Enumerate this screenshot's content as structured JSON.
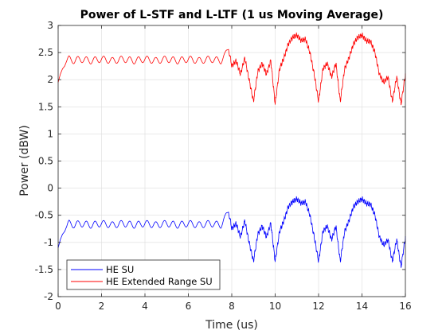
{
  "chart_data": {
    "type": "line",
    "title": "Power of L-STF and L-LTF (1 us Moving Average)",
    "xlabel": "Time (us)",
    "ylabel": "Power (dBW)",
    "xlim": [
      0,
      16
    ],
    "ylim": [
      -2,
      3
    ],
    "xticks": [
      0,
      2,
      4,
      6,
      8,
      10,
      12,
      14,
      16
    ],
    "yticks": [
      3,
      2.5,
      2,
      1.5,
      1,
      0.5,
      0,
      -0.5,
      -1,
      -1.5,
      -2
    ],
    "xtick_labels": [
      "0",
      "2",
      "4",
      "6",
      "8",
      "10",
      "12",
      "14",
      "16"
    ],
    "ytick_labels": [
      "3",
      "2.5",
      "2",
      "1.5",
      "1",
      "0.5",
      "0",
      "-0.5",
      "-1",
      "-1.5",
      "-2"
    ],
    "grid": true,
    "legend_position": "bottom-left",
    "series": [
      {
        "name": "HE SU",
        "color": "#0000ff",
        "x": [
          0.0,
          0.1,
          0.2,
          0.3,
          0.4,
          0.5,
          0.75,
          1.0,
          1.5,
          2.0,
          2.5,
          3.0,
          3.5,
          4.0,
          4.5,
          5.0,
          5.5,
          6.0,
          6.5,
          7.0,
          7.5,
          7.7,
          7.85,
          8.0,
          8.2,
          8.4,
          8.6,
          8.8,
          9.0,
          9.2,
          9.4,
          9.6,
          9.8,
          10.0,
          10.2,
          10.4,
          10.6,
          10.8,
          11.0,
          11.2,
          11.4,
          11.6,
          11.8,
          12.0,
          12.2,
          12.4,
          12.6,
          12.8,
          13.0,
          13.2,
          13.4,
          13.6,
          13.8,
          14.0,
          14.2,
          14.4,
          14.6,
          14.8,
          15.0,
          15.2,
          15.4,
          15.6,
          15.8,
          16.0
        ],
        "y": [
          -1.1,
          -0.95,
          -0.85,
          -0.8,
          -0.7,
          -0.65,
          -0.68,
          -0.65,
          -0.68,
          -0.65,
          -0.68,
          -0.65,
          -0.68,
          -0.65,
          -0.68,
          -0.65,
          -0.68,
          -0.65,
          -0.68,
          -0.65,
          -0.68,
          -0.55,
          -0.4,
          -0.75,
          -0.65,
          -0.9,
          -0.6,
          -1.0,
          -1.35,
          -0.85,
          -0.7,
          -0.9,
          -0.65,
          -1.35,
          -0.8,
          -0.6,
          -0.35,
          -0.25,
          -0.2,
          -0.28,
          -0.25,
          -0.5,
          -0.9,
          -1.35,
          -0.8,
          -0.7,
          -0.95,
          -0.7,
          -1.35,
          -0.8,
          -0.6,
          -0.35,
          -0.25,
          -0.2,
          -0.28,
          -0.3,
          -0.5,
          -0.9,
          -1.05,
          -0.95,
          -1.35,
          -0.95,
          -1.45,
          -0.9
        ]
      },
      {
        "name": "HE Extended Range SU",
        "color": "#ff0000",
        "x": [
          0.0,
          0.1,
          0.2,
          0.3,
          0.4,
          0.5,
          0.75,
          1.0,
          1.5,
          2.0,
          2.5,
          3.0,
          3.5,
          4.0,
          4.5,
          5.0,
          5.5,
          6.0,
          6.5,
          7.0,
          7.5,
          7.7,
          7.85,
          8.0,
          8.2,
          8.4,
          8.6,
          8.8,
          9.0,
          9.2,
          9.4,
          9.6,
          9.8,
          10.0,
          10.2,
          10.4,
          10.6,
          10.8,
          11.0,
          11.2,
          11.4,
          11.6,
          11.8,
          12.0,
          12.2,
          12.4,
          12.6,
          12.8,
          13.0,
          13.2,
          13.4,
          13.6,
          13.8,
          14.0,
          14.2,
          14.4,
          14.6,
          14.8,
          15.0,
          15.2,
          15.4,
          15.6,
          15.8,
          16.0
        ],
        "y": [
          1.95,
          2.1,
          2.2,
          2.25,
          2.35,
          2.38,
          2.35,
          2.38,
          2.35,
          2.38,
          2.35,
          2.38,
          2.35,
          2.38,
          2.35,
          2.38,
          2.35,
          2.38,
          2.35,
          2.38,
          2.35,
          2.45,
          2.6,
          2.25,
          2.35,
          2.1,
          2.4,
          2.0,
          1.6,
          2.15,
          2.3,
          2.1,
          2.35,
          1.55,
          2.2,
          2.4,
          2.65,
          2.78,
          2.82,
          2.72,
          2.75,
          2.5,
          2.1,
          1.6,
          2.2,
          2.3,
          2.05,
          2.3,
          1.6,
          2.2,
          2.4,
          2.65,
          2.78,
          2.82,
          2.72,
          2.7,
          2.5,
          2.1,
          1.95,
          2.05,
          1.6,
          2.05,
          1.55,
          2.1
        ]
      }
    ]
  }
}
